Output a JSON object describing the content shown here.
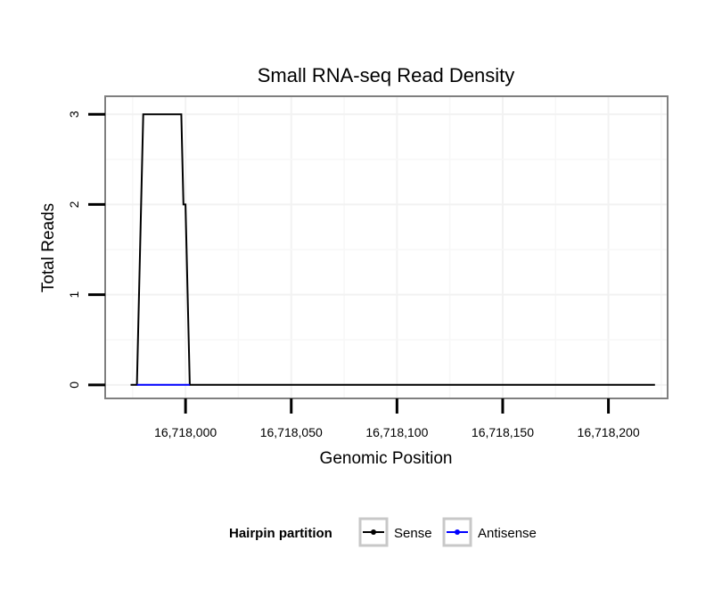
{
  "chart_data": {
    "type": "line",
    "title": "Small RNA-seq Read Density",
    "xlabel": "Genomic Position",
    "ylabel": "Total Reads",
    "xlim": [
      16717962,
      16718228
    ],
    "ylim": [
      -0.15,
      3.2
    ],
    "x_ticks": [
      16718000,
      16718050,
      16718100,
      16718150,
      16718200
    ],
    "x_tick_labels": [
      "16,718,000",
      "16,718,050",
      "16,718,100",
      "16,718,150",
      "16,718,200"
    ],
    "y_ticks": [
      0,
      1,
      2,
      3
    ],
    "y_tick_labels": [
      "0",
      "1",
      "2",
      "3"
    ],
    "grid": true,
    "legend": {
      "title": "Hairpin partition",
      "placement": "bottom"
    },
    "series": [
      {
        "name": "Sense",
        "color": "#000000",
        "x": [
          16717974,
          16717977,
          16717980,
          16717998,
          16717999,
          16718000,
          16718002,
          16718222
        ],
        "y": [
          0,
          0,
          3,
          3,
          2,
          2,
          0,
          0
        ]
      },
      {
        "name": "Antisense",
        "color": "#0000ff",
        "x": [
          16717977,
          16718002
        ],
        "y": [
          0,
          0
        ]
      }
    ]
  }
}
